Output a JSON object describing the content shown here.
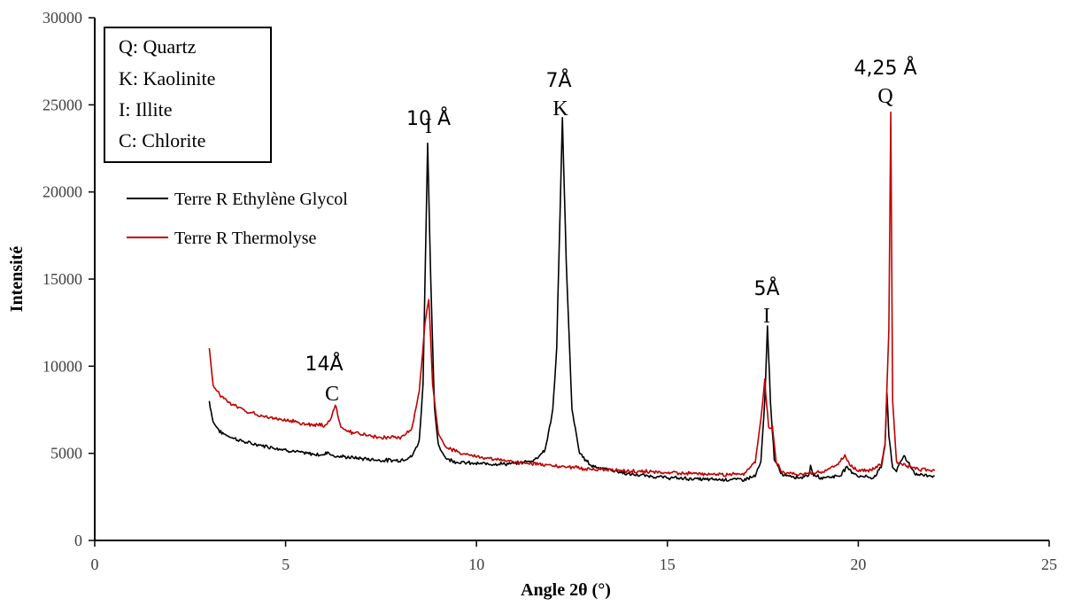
{
  "chart_data": {
    "type": "line",
    "title": "",
    "xlabel": "Angle 2θ (°)",
    "ylabel": "Intensité",
    "xlim": [
      0,
      25
    ],
    "ylim": [
      0,
      30000
    ],
    "x_ticks": [
      "0",
      "5",
      "10",
      "15",
      "20",
      "25"
    ],
    "y_ticks": [
      "0",
      "5000",
      "10000",
      "15000",
      "20000",
      "25000",
      "30000"
    ],
    "grid": false,
    "legend_position": "upper-left",
    "series": [
      {
        "name": "Terre R Ethylène Glycol",
        "color": "#000000",
        "x": [
          3.0,
          3.1,
          3.3,
          3.6,
          4.0,
          4.5,
          5.0,
          5.5,
          6.0,
          6.1,
          6.25,
          6.5,
          7.0,
          7.5,
          8.0,
          8.3,
          8.5,
          8.6,
          8.72,
          8.8,
          8.9,
          9.0,
          9.2,
          9.5,
          10.0,
          11.0,
          11.5,
          11.8,
          12.0,
          12.1,
          12.25,
          12.35,
          12.5,
          12.7,
          13.0,
          14.0,
          15.0,
          16.0,
          17.0,
          17.3,
          17.45,
          17.55,
          17.62,
          17.7,
          17.8,
          18.0,
          18.5,
          18.7,
          18.75,
          18.8,
          19.0,
          19.5,
          19.7,
          19.8,
          20.0,
          20.4,
          20.6,
          20.7,
          20.75,
          20.8,
          20.9,
          21.0,
          21.2,
          21.3,
          21.5,
          22.0
        ],
        "y": [
          8000,
          6800,
          6200,
          5900,
          5600,
          5400,
          5200,
          5000,
          4900,
          5100,
          4850,
          4800,
          4700,
          4600,
          4600,
          4800,
          5700,
          9000,
          22800,
          15000,
          7500,
          5500,
          4700,
          4500,
          4400,
          4400,
          4600,
          5200,
          7500,
          11000,
          24200,
          16000,
          7500,
          5000,
          4300,
          3800,
          3600,
          3500,
          3500,
          3700,
          4500,
          8000,
          12300,
          8000,
          4600,
          3800,
          3600,
          3800,
          4200,
          3800,
          3600,
          3700,
          4200,
          4000,
          3700,
          3600,
          4200,
          5500,
          8500,
          6000,
          4200,
          4000,
          4900,
          4500,
          3800,
          3700
        ]
      },
      {
        "name": "Terre R Thermolyse",
        "color": "#c00000",
        "x": [
          3.0,
          3.1,
          3.3,
          3.6,
          4.0,
          4.5,
          5.0,
          5.5,
          6.0,
          6.15,
          6.3,
          6.45,
          6.7,
          7.0,
          7.5,
          8.0,
          8.3,
          8.5,
          8.65,
          8.75,
          8.85,
          9.0,
          9.2,
          9.5,
          10.0,
          11.0,
          12.0,
          13.0,
          14.0,
          15.0,
          16.0,
          17.0,
          17.3,
          17.45,
          17.55,
          17.65,
          17.75,
          17.85,
          18.0,
          18.5,
          19.0,
          19.3,
          19.5,
          19.65,
          19.8,
          20.0,
          20.3,
          20.6,
          20.7,
          20.8,
          20.85,
          20.9,
          21.0,
          21.5,
          22.0
        ],
        "y": [
          11000,
          8900,
          8300,
          7800,
          7400,
          7100,
          6900,
          6700,
          6600,
          6800,
          7800,
          6500,
          6200,
          6100,
          5900,
          5900,
          6400,
          8500,
          12500,
          13900,
          9000,
          6200,
          5300,
          5100,
          4800,
          4500,
          4300,
          4100,
          4000,
          3900,
          3800,
          3800,
          4500,
          7000,
          9200,
          6500,
          6500,
          4500,
          3900,
          3800,
          3900,
          4200,
          4500,
          4900,
          4300,
          4000,
          4000,
          4400,
          5500,
          12000,
          24700,
          8000,
          4500,
          4100,
          4000
        ]
      }
    ],
    "annotations": [
      {
        "line1": "14Å",
        "line2": "C",
        "x": 6.3
      },
      {
        "line1": "10 Å",
        "line2": "I",
        "x": 8.72
      },
      {
        "line1": "7Å",
        "line2": "K",
        "x": 12.25
      },
      {
        "line1": "5Å",
        "line2": "I",
        "x": 17.62
      },
      {
        "line1": "4,25 Å",
        "line2": "Q",
        "x": 20.85
      }
    ],
    "key_box": [
      "Q: Quartz",
      "K: Kaolinite",
      "I: Illite",
      "C: Chlorite"
    ]
  }
}
